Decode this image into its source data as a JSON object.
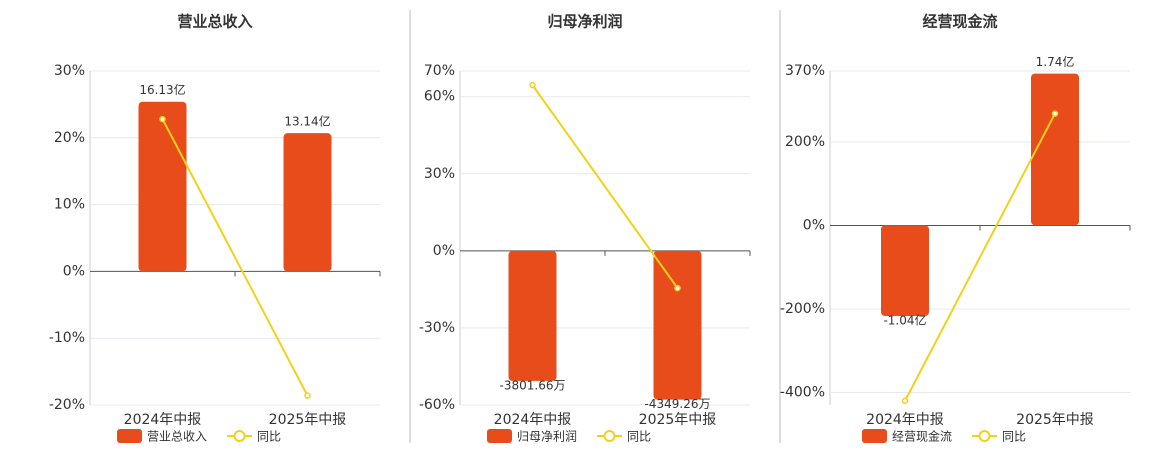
{
  "chart_data": [
    {
      "type": "bar",
      "title": "营业总收入",
      "categories": [
        "2024年中报",
        "2025年中报"
      ],
      "series": [
        {
          "name": "营业总收入",
          "type": "bar",
          "axis": "y2",
          "color": "#e84c1a",
          "values": [
            16.13,
            13.14
          ],
          "value_labels": [
            "16.13亿",
            "13.14亿"
          ]
        },
        {
          "name": "同比",
          "type": "line",
          "color": "#f2d11b",
          "values": [
            22.8,
            -18.6
          ]
        }
      ],
      "ylim": [
        -20,
        30
      ],
      "y2lim": [
        -12.7,
        19.05
      ],
      "yticks": [
        {
          "value": 30,
          "label": "30%"
        },
        {
          "value": 20,
          "label": "20%"
        },
        {
          "value": 10,
          "label": "10%"
        },
        {
          "value": 0,
          "label": "0%"
        },
        {
          "value": -10,
          "label": "-10%"
        },
        {
          "value": -20,
          "label": "-20%"
        }
      ],
      "grid": true
    },
    {
      "type": "bar",
      "title": "归母净利润",
      "categories": [
        "2024年中报",
        "2025年中报"
      ],
      "series": [
        {
          "name": "归母净利润",
          "type": "bar",
          "axis": "y2",
          "color": "#e84c1a",
          "values": [
            -3801.66,
            -4349.26
          ],
          "value_labels": [
            "-3801.66万",
            "-4349.26万"
          ]
        },
        {
          "name": "同比",
          "type": "line",
          "color": "#f2d11b",
          "values": [
            64.5,
            -14.5
          ]
        }
      ],
      "ylim": [
        -60,
        70
      ],
      "y2lim": [
        -4506,
        5257
      ],
      "yticks": [
        {
          "value": 70,
          "label": "70%"
        },
        {
          "value": 60,
          "label": "60%"
        },
        {
          "value": 30,
          "label": "30%"
        },
        {
          "value": 0,
          "label": "0%"
        },
        {
          "value": -30,
          "label": "-30%"
        },
        {
          "value": -60,
          "label": "-60%"
        }
      ],
      "grid": true
    },
    {
      "type": "bar",
      "title": "经营现金流",
      "categories": [
        "2024年中报",
        "2025年中报"
      ],
      "series": [
        {
          "name": "经营现金流",
          "type": "bar",
          "axis": "y2",
          "color": "#e84c1a",
          "values": [
            -1.04,
            1.74
          ],
          "value_labels": [
            "-1.04亿",
            "1.74亿"
          ]
        },
        {
          "name": "同比",
          "type": "line",
          "color": "#f2d11b",
          "values": [
            -420,
            268
          ]
        }
      ],
      "ylim": [
        -430,
        370
      ],
      "y2lim": [
        -2.06,
        1.77
      ],
      "yticks": [
        {
          "value": 370,
          "label": "370%"
        },
        {
          "value": 200,
          "label": "200%"
        },
        {
          "value": 0,
          "label": "0%"
        },
        {
          "value": -200,
          "label": "-200%"
        },
        {
          "value": -400,
          "label": "-400%"
        }
      ],
      "grid": true
    }
  ]
}
